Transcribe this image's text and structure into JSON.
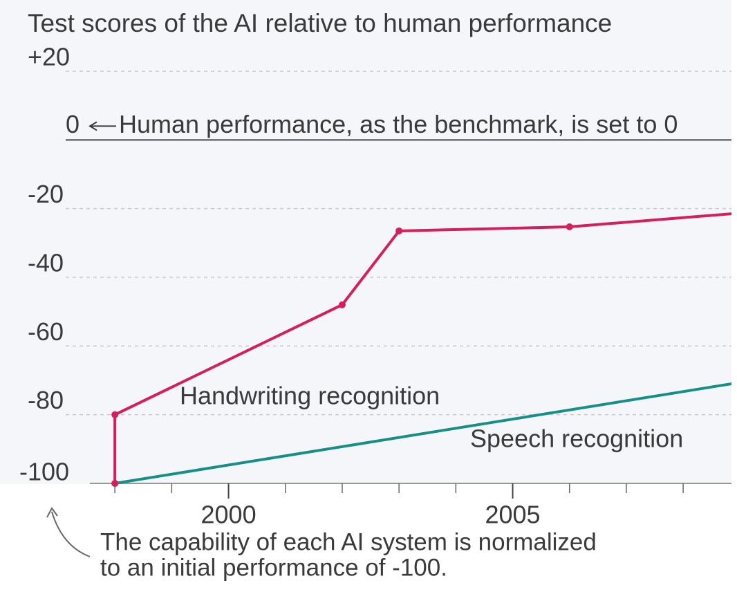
{
  "chart_data": {
    "type": "line",
    "title": "Test scores of the AI relative to human performance",
    "benchmark_annotation": "Human performance, as the benchmark, is set to 0",
    "footnote": [
      "The capability of each AI system is normalized",
      "to an initial performance of -100."
    ],
    "xlim": [
      1997.56,
      2008.85
    ],
    "xticks": [
      2000,
      2005
    ],
    "x_minor_ticks": [
      1998,
      1999,
      2000,
      2001,
      2002,
      2003,
      2004,
      2005,
      2006,
      2007,
      2008
    ],
    "ylim": [
      -100,
      20
    ],
    "yticks": [
      {
        "value": 20,
        "label": "+20"
      },
      0,
      -20,
      -40,
      -60,
      -80,
      -100
    ],
    "grid": true,
    "series": [
      {
        "name": "Handwriting recognition",
        "color": "#d41f5b",
        "x": [
          1998,
          1998,
          2002,
          2003,
          2006,
          2009
        ],
        "values": [
          -100,
          -80,
          -48,
          -26.5,
          -25.3,
          -21.3
        ]
      },
      {
        "name": "Speech recognition",
        "color": "#168f86",
        "x": [
          1998,
          2009
        ],
        "values": [
          -100,
          -70.6
        ]
      }
    ]
  }
}
